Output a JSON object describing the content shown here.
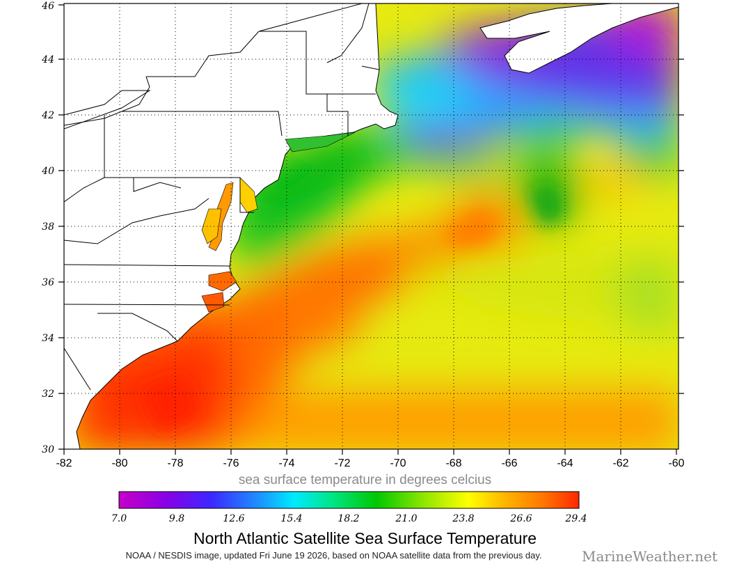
{
  "map": {
    "lat_labels": [
      "30",
      "32",
      "34",
      "36",
      "38",
      "40",
      "42",
      "44",
      "46"
    ],
    "lon_labels": [
      "-82",
      "-80",
      "-78",
      "-76",
      "-74",
      "-72",
      "-70",
      "-68",
      "-66",
      "-64",
      "-62",
      "-60"
    ],
    "lat_range": [
      30,
      46
    ],
    "lon_range": [
      -82,
      -60
    ],
    "grid": "dotted"
  },
  "colorbar": {
    "caption": "sea surface temperature in degrees celcius",
    "ticks": [
      "7.0",
      "9.8",
      "12.6",
      "15.4",
      "18.2",
      "21.0",
      "23.8",
      "26.6",
      "29.4"
    ],
    "colors": [
      "#c800c8",
      "#8a00e6",
      "#3c28ff",
      "#1e8cff",
      "#00eaff",
      "#00e68c",
      "#00c800",
      "#8ce600",
      "#ffff00",
      "#ffb400",
      "#ff7800",
      "#ff2800"
    ]
  },
  "title": "North Atlantic Satellite Sea Surface Temperature",
  "credit": "NOAA / NESDIS image, updated Fri June 19 2026, based on NOAA satellite data from the previous day.",
  "brand": "MarineWeather.net"
}
